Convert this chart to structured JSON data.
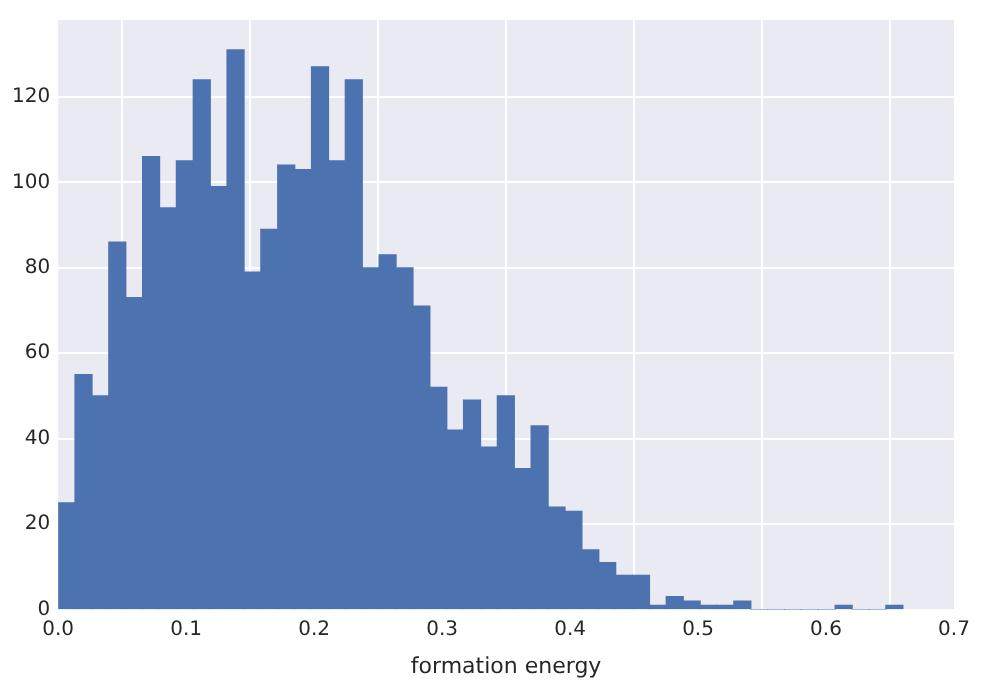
{
  "chart_data": {
    "type": "histogram",
    "xlabel": "formation energy",
    "bins": [
      0,
      0.0132,
      0.0264,
      0.0396,
      0.0528,
      0.066,
      0.0792,
      0.0924,
      0.1056,
      0.1188,
      0.132,
      0.1452,
      0.1584,
      0.1716,
      0.1848,
      0.198,
      0.2112,
      0.2244,
      0.2376,
      0.2508,
      0.264,
      0.2772,
      0.2904,
      0.3036,
      0.3168,
      0.33,
      0.3432,
      0.3564,
      0.3696,
      0.3828,
      0.396,
      0.4092,
      0.4224,
      0.4356,
      0.4488,
      0.462,
      0.4752,
      0.4884,
      0.5016,
      0.5148,
      0.528,
      0.5412,
      0.5544,
      0.5676,
      0.5808,
      0.594,
      0.6072,
      0.6204,
      0.6336,
      0.6468,
      0.66
    ],
    "values": [
      25,
      55,
      50,
      86,
      73,
      106,
      94,
      105,
      124,
      99,
      131,
      79,
      89,
      104,
      103,
      127,
      105,
      124,
      80,
      83,
      80,
      71,
      52,
      42,
      49,
      38,
      50,
      33,
      43,
      24,
      23,
      14,
      11,
      8,
      8,
      1,
      3,
      2,
      1,
      1,
      2,
      0,
      0,
      0,
      0,
      0,
      1,
      0,
      0,
      1
    ],
    "color": "#4c72b0",
    "xlim": [
      0,
      0.7
    ],
    "xticks": [
      {
        "value": 0,
        "label": "0.0"
      },
      {
        "value": 0.1,
        "label": "0.1"
      },
      {
        "value": 0.2,
        "label": "0.2"
      },
      {
        "value": 0.3,
        "label": "0.3"
      },
      {
        "value": 0.4,
        "label": "0.4"
      },
      {
        "value": 0.5,
        "label": "0.5"
      },
      {
        "value": 0.6,
        "label": "0.6"
      },
      {
        "value": 0.7,
        "label": "0.7"
      }
    ],
    "ylim": [
      0,
      138
    ],
    "yticks": [
      0,
      20,
      40,
      60,
      80,
      100,
      120
    ],
    "grid": true
  }
}
